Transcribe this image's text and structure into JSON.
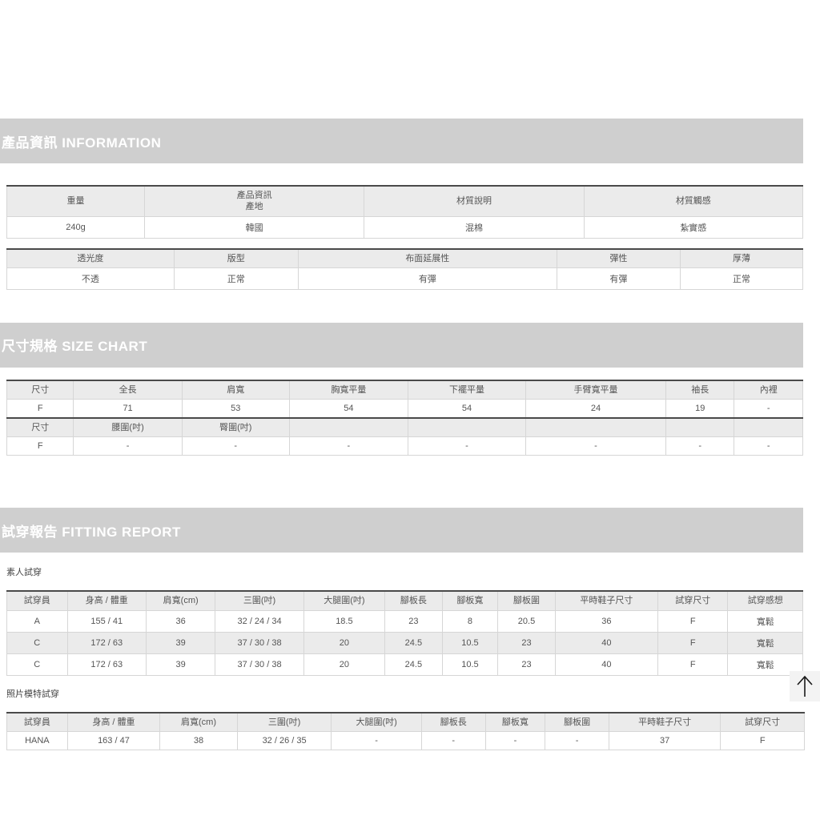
{
  "sections": {
    "information_title": "產品資訊 INFORMATION",
    "size_chart_title": "尺寸規格 SIZE CHART",
    "fitting_title": "試穿報告 FITTING REPORT"
  },
  "labels": {
    "regular_fitting": "素人試穿",
    "model_fitting": "照片模特試穿"
  },
  "colors": {
    "section_bar_bg": "#cfcfcf",
    "section_bar_text": "#ffffff",
    "table_header_bg": "#ebebeb",
    "table_top_border": "#4a4a4a",
    "cell_border": "#d6d6d6",
    "cell_text": "#555555"
  },
  "back_to_top": {
    "icon_name": "up-arrow-icon"
  },
  "tables": {
    "product_info": {
      "zebra": false,
      "col_widths": [
        "17.3%",
        "27.6%",
        "27.6%",
        "27.5%"
      ],
      "rows": [
        {
          "type": "header",
          "cells": [
            "重量",
            "產品資訊\n產地",
            "材質說明",
            "材質觸感"
          ]
        },
        {
          "type": "data",
          "cells": [
            "240g",
            "韓國",
            "混棉",
            "紮實感"
          ]
        }
      ]
    },
    "fabric_info": {
      "zebra": false,
      "col_widths": [
        "21%",
        "15.6%",
        "32.5%",
        "15.5%",
        "15.4%"
      ],
      "rows": [
        {
          "type": "header",
          "cells": [
            "透光度",
            "版型",
            "布面延展性",
            "彈性",
            "厚薄"
          ]
        },
        {
          "type": "data",
          "cells": [
            "不透",
            "正常",
            "有彈",
            "有彈",
            "正常"
          ]
        }
      ]
    },
    "size_chart": {
      "zebra": false,
      "col_widths": [
        "8.4%",
        "13.6%",
        "13.5%",
        "14.9%",
        "14.8%",
        "17.6%",
        "8.6%",
        "8.6%"
      ],
      "rows": [
        {
          "type": "header",
          "cells": [
            "尺寸",
            "全長",
            "肩寬",
            "胸寬平量",
            "下襬平量",
            "手臂寬平量",
            "袖長",
            "內裡"
          ]
        },
        {
          "type": "data",
          "cells": [
            "F",
            "71",
            "53",
            "54",
            "54",
            "24",
            "19",
            "-"
          ]
        },
        {
          "type": "header",
          "thick_top": true,
          "cells": [
            "尺寸",
            "腰圍(吋)",
            "臀圍(吋)",
            "",
            "",
            "",
            "",
            ""
          ]
        },
        {
          "type": "data",
          "cells": [
            "F",
            "-",
            "-",
            "-",
            "-",
            "-",
            "-",
            "-"
          ]
        }
      ]
    },
    "regular_fitting": {
      "zebra": true,
      "col_widths": [
        "7.6%",
        "9.9%",
        "8.7%",
        "11.1%",
        "10.2%",
        "7.2%",
        "7.0%",
        "7.2%",
        "12.9%",
        "8.8%",
        "9.4%"
      ],
      "rows": [
        {
          "type": "header",
          "cells": [
            "試穿員",
            "身高 / 體重",
            "肩寬(cm)",
            "三圍(吋)",
            "大腿圍(吋)",
            "腳板長",
            "腳板寬",
            "腳板圍",
            "平時鞋子尺寸",
            "試穿尺寸",
            "試穿感想"
          ]
        },
        {
          "type": "data",
          "cells": [
            "A",
            "155 / 41",
            "36",
            "32 / 24 / 34",
            "18.5",
            "23",
            "8",
            "20.5",
            "36",
            "F",
            "寬鬆"
          ]
        },
        {
          "type": "data",
          "cells": [
            "C",
            "172 / 63",
            "39",
            "37 / 30 / 38",
            "20",
            "24.5",
            "10.5",
            "23",
            "40",
            "F",
            "寬鬆"
          ]
        },
        {
          "type": "data",
          "cells": [
            "C",
            "172 / 63",
            "39",
            "37 / 30 / 38",
            "20",
            "24.5",
            "10.5",
            "23",
            "40",
            "F",
            "寬鬆"
          ]
        }
      ]
    },
    "model_fitting": {
      "zebra": true,
      "col_widths": [
        "7.6%",
        "11.6%",
        "9.7%",
        "11.8%",
        "11.3%",
        "8.0%",
        "7.5%",
        "8.0%",
        "14.0%",
        "10.5%"
      ],
      "rows": [
        {
          "type": "header",
          "cells": [
            "試穿員",
            "身高 / 體重",
            "肩寬(cm)",
            "三圍(吋)",
            "大腿圍(吋)",
            "腳板長",
            "腳板寬",
            "腳板圍",
            "平時鞋子尺寸",
            "試穿尺寸"
          ]
        },
        {
          "type": "data",
          "cells": [
            "HANA",
            "163 / 47",
            "38",
            "32 / 26 / 35",
            "-",
            "-",
            "-",
            "-",
            "37",
            "F"
          ]
        }
      ]
    }
  }
}
